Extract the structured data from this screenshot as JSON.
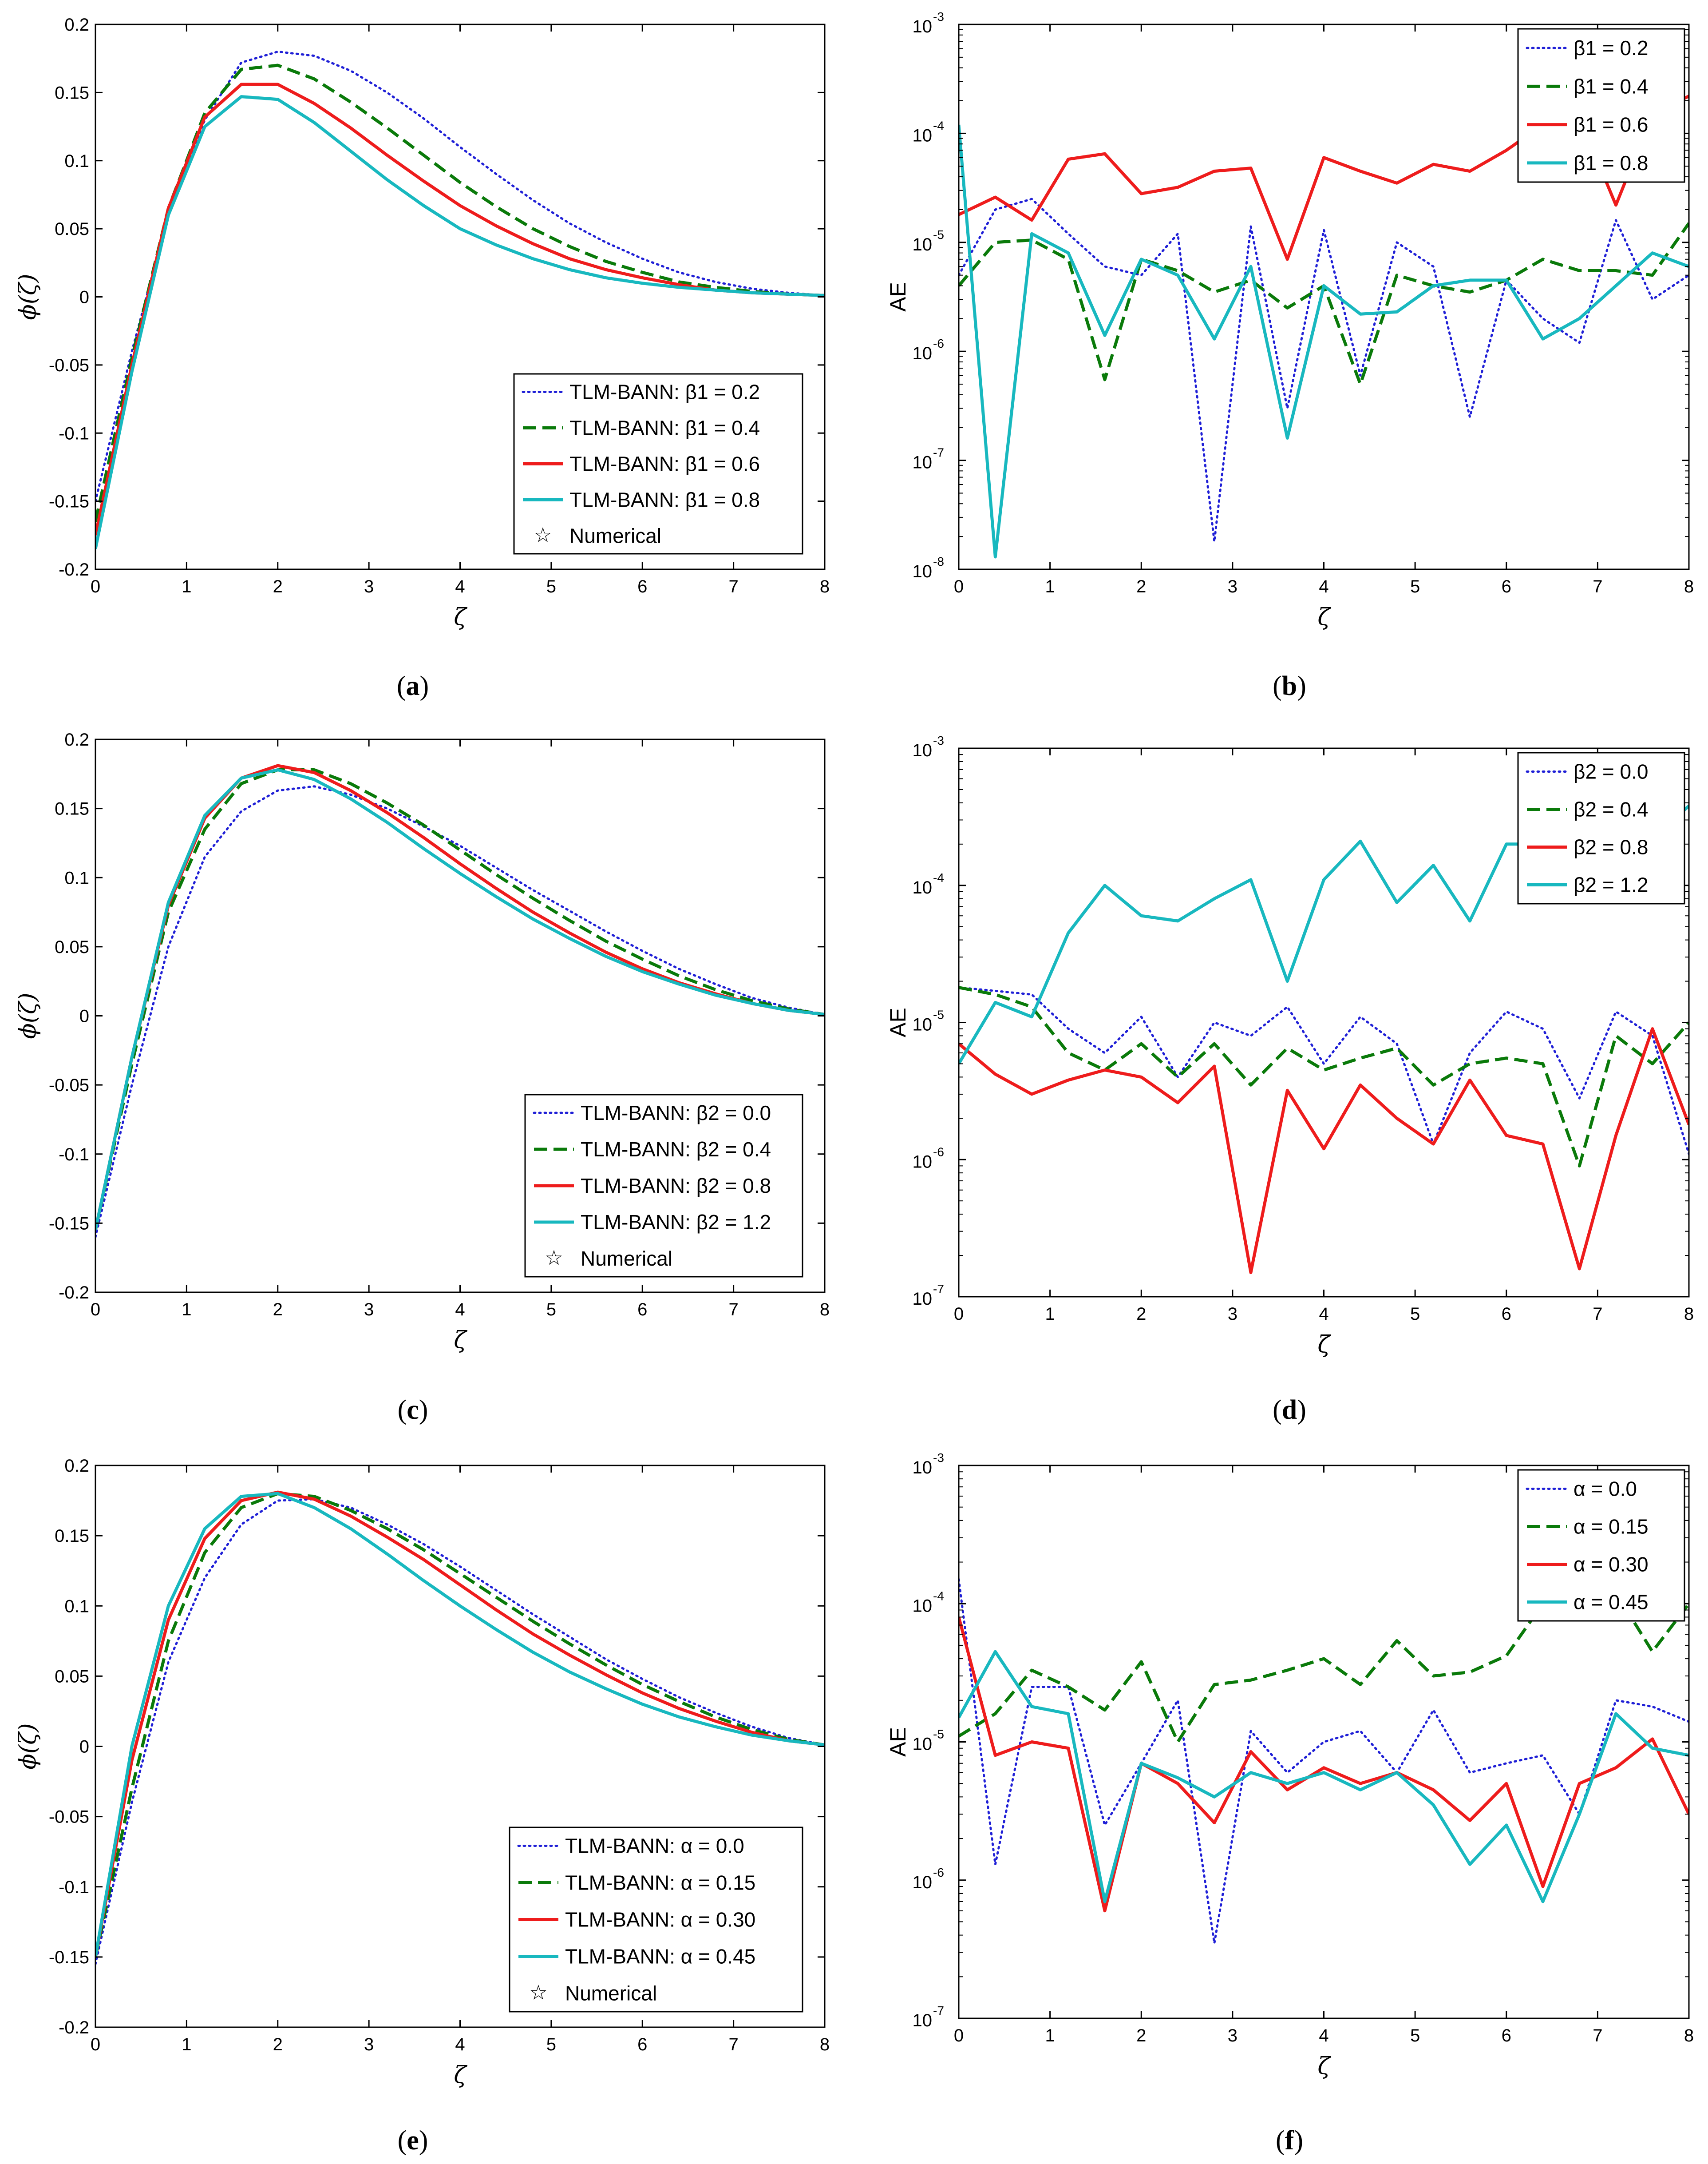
{
  "colors": {
    "blue": "#1f1fd6",
    "green": "#0a7a0a",
    "red": "#ee1c1c",
    "cyan": "#18b8bf",
    "axis": "#000000"
  },
  "chart_data": [
    {
      "panel": "a",
      "caption": "a",
      "type": "line",
      "xlabel": "ζ",
      "ylabel": "ϕ(ζ)",
      "xlim": [
        0,
        8
      ],
      "ylim": [
        -0.2,
        0.2
      ],
      "xticks": [
        "0",
        "1",
        "2",
        "3",
        "4",
        "5",
        "6",
        "7",
        "8"
      ],
      "yticks": [
        "-0.2",
        "-0.15",
        "-0.1",
        "-0.05",
        "0",
        "0.05",
        "0.1",
        "0.15",
        "0.2"
      ],
      "ytick_values": [
        -0.2,
        -0.15,
        -0.1,
        -0.05,
        0,
        0.05,
        0.1,
        0.15,
        0.2
      ],
      "legend_position": "bottom-right",
      "legend_numerical": "Numerical",
      "x": [
        0,
        0.4,
        0.8,
        1.2,
        1.6,
        2.0,
        2.4,
        2.8,
        3.2,
        3.6,
        4.0,
        4.4,
        4.8,
        5.2,
        5.6,
        6.0,
        6.4,
        6.8,
        7.2,
        7.6,
        8.0
      ],
      "series": [
        {
          "name": "TLM-BANN: β1 = 0.2",
          "style": "dotted",
          "color": "blue",
          "values": [
            -0.15,
            -0.04,
            0.06,
            0.13,
            0.172,
            0.18,
            0.177,
            0.166,
            0.15,
            0.131,
            0.11,
            0.09,
            0.071,
            0.054,
            0.04,
            0.028,
            0.018,
            0.011,
            0.006,
            0.003,
            0.001
          ]
        },
        {
          "name": "TLM-BANN: β1 = 0.4",
          "style": "dashed",
          "color": "green",
          "values": [
            -0.165,
            -0.045,
            0.065,
            0.135,
            0.167,
            0.17,
            0.16,
            0.143,
            0.124,
            0.104,
            0.084,
            0.066,
            0.05,
            0.037,
            0.026,
            0.018,
            0.011,
            0.007,
            0.004,
            0.002,
            0.001
          ]
        },
        {
          "name": "TLM-BANN: β1 = 0.6",
          "style": "solid",
          "color": "red",
          "values": [
            -0.175,
            -0.05,
            0.065,
            0.132,
            0.156,
            0.156,
            0.142,
            0.124,
            0.104,
            0.085,
            0.067,
            0.052,
            0.039,
            0.028,
            0.02,
            0.014,
            0.009,
            0.005,
            0.003,
            0.002,
            0.001
          ]
        },
        {
          "name": "TLM-BANN: β1 = 0.8",
          "style": "solid",
          "color": "cyan",
          "values": [
            -0.185,
            -0.055,
            0.06,
            0.125,
            0.147,
            0.145,
            0.128,
            0.107,
            0.086,
            0.067,
            0.05,
            0.038,
            0.028,
            0.02,
            0.014,
            0.01,
            0.007,
            0.005,
            0.003,
            0.002,
            0.001
          ]
        }
      ]
    },
    {
      "panel": "b",
      "caption": "b",
      "type": "line",
      "yscale": "log",
      "xlabel": "ζ",
      "ylabel": "AE",
      "xlim": [
        0,
        8
      ],
      "ylim_exp": [
        -8,
        -3
      ],
      "xticks": [
        "0",
        "1",
        "2",
        "3",
        "4",
        "5",
        "6",
        "7",
        "8"
      ],
      "ytick_exps": [
        "-8",
        "-7",
        "-6",
        "-5",
        "-4",
        "-3"
      ],
      "ytick_base": "10",
      "legend_position": "top-right",
      "x": [
        0,
        0.4,
        0.8,
        1.2,
        1.6,
        2.0,
        2.4,
        2.8,
        3.2,
        3.6,
        4.0,
        4.4,
        4.8,
        5.2,
        5.6,
        6.0,
        6.4,
        6.8,
        7.2,
        7.6,
        8.0
      ],
      "series": [
        {
          "name": "β1 = 0.2",
          "style": "dotted",
          "color": "blue",
          "values": [
            5e-06,
            2e-05,
            2.5e-05,
            1.2e-05,
            6e-06,
            5e-06,
            1.2e-05,
            1.8e-08,
            1.4e-05,
            3e-07,
            1.3e-05,
            6e-07,
            1e-05,
            6e-06,
            2.5e-07,
            4.5e-06,
            2e-06,
            1.2e-06,
            1.6e-05,
            3e-06,
            5e-06
          ]
        },
        {
          "name": "β1 = 0.4",
          "style": "dashed",
          "color": "green",
          "values": [
            4e-06,
            1e-05,
            1.05e-05,
            7e-06,
            5.5e-07,
            7e-06,
            5.5e-06,
            3.5e-06,
            4.5e-06,
            2.5e-06,
            4e-06,
            5e-07,
            5e-06,
            4e-06,
            3.5e-06,
            4.5e-06,
            7e-06,
            5.5e-06,
            5.5e-06,
            5e-06,
            1.5e-05
          ]
        },
        {
          "name": "β1 = 0.6",
          "style": "solid",
          "color": "red",
          "values": [
            1.8e-05,
            2.6e-05,
            1.6e-05,
            5.8e-05,
            6.5e-05,
            2.8e-05,
            3.2e-05,
            4.5e-05,
            4.8e-05,
            7e-06,
            6e-05,
            4.5e-05,
            3.5e-05,
            5.2e-05,
            4.5e-05,
            7e-05,
            0.00012,
            0.00014,
            2.2e-05,
            0.00015,
            0.00022
          ]
        },
        {
          "name": "β1 = 0.8",
          "style": "solid",
          "color": "cyan",
          "values": [
            0.00012,
            1.3e-08,
            1.2e-05,
            8e-06,
            1.4e-06,
            7e-06,
            5e-06,
            1.3e-06,
            6e-06,
            1.6e-07,
            4e-06,
            2.2e-06,
            2.3e-06,
            4e-06,
            4.5e-06,
            4.5e-06,
            1.3e-06,
            2e-06,
            4e-06,
            8e-06,
            6e-06
          ]
        }
      ]
    },
    {
      "panel": "c",
      "caption": "c",
      "type": "line",
      "xlabel": "ζ",
      "ylabel": "ϕ(ζ)",
      "xlim": [
        0,
        8
      ],
      "ylim": [
        -0.2,
        0.2
      ],
      "xticks": [
        "0",
        "1",
        "2",
        "3",
        "4",
        "5",
        "6",
        "7",
        "8"
      ],
      "yticks": [
        "-0.2",
        "-0.15",
        "-0.1",
        "-0.05",
        "0",
        "0.05",
        "0.1",
        "0.15",
        "0.2"
      ],
      "ytick_values": [
        -0.2,
        -0.15,
        -0.1,
        -0.05,
        0,
        0.05,
        0.1,
        0.15,
        0.2
      ],
      "legend_position": "bottom-right",
      "legend_numerical": "Numerical",
      "x": [
        0,
        0.4,
        0.8,
        1.2,
        1.6,
        2.0,
        2.4,
        2.8,
        3.2,
        3.6,
        4.0,
        4.4,
        4.8,
        5.2,
        5.6,
        6.0,
        6.4,
        6.8,
        7.2,
        7.6,
        8.0
      ],
      "series": [
        {
          "name": "TLM-BANN: β2 = 0.0",
          "style": "dotted",
          "color": "blue",
          "values": [
            -0.16,
            -0.05,
            0.05,
            0.115,
            0.148,
            0.163,
            0.166,
            0.16,
            0.15,
            0.137,
            0.123,
            0.107,
            0.091,
            0.076,
            0.061,
            0.047,
            0.034,
            0.023,
            0.013,
            0.006,
            0.001
          ]
        },
        {
          "name": "TLM-BANN: β2 = 0.4",
          "style": "dashed",
          "color": "green",
          "values": [
            -0.155,
            -0.035,
            0.075,
            0.135,
            0.168,
            0.178,
            0.178,
            0.168,
            0.154,
            0.138,
            0.12,
            0.102,
            0.085,
            0.069,
            0.054,
            0.041,
            0.029,
            0.019,
            0.011,
            0.005,
            0.001
          ]
        },
        {
          "name": "TLM-BANN: β2 = 0.8",
          "style": "solid",
          "color": "red",
          "values": [
            -0.155,
            -0.03,
            0.08,
            0.143,
            0.172,
            0.181,
            0.176,
            0.163,
            0.147,
            0.129,
            0.11,
            0.092,
            0.075,
            0.06,
            0.046,
            0.034,
            0.024,
            0.016,
            0.009,
            0.004,
            0.001
          ]
        },
        {
          "name": "TLM-BANN: β2 = 1.2",
          "style": "solid",
          "color": "cyan",
          "values": [
            -0.155,
            -0.03,
            0.082,
            0.145,
            0.172,
            0.178,
            0.171,
            0.157,
            0.14,
            0.121,
            0.103,
            0.086,
            0.07,
            0.056,
            0.043,
            0.032,
            0.023,
            0.015,
            0.009,
            0.004,
            0.001
          ]
        }
      ]
    },
    {
      "panel": "d",
      "caption": "d",
      "type": "line",
      "yscale": "log",
      "xlabel": "ζ",
      "ylabel": "AE",
      "xlim": [
        0,
        8
      ],
      "ylim_exp": [
        -7,
        -3
      ],
      "xticks": [
        "0",
        "1",
        "2",
        "3",
        "4",
        "5",
        "6",
        "7",
        "8"
      ],
      "ytick_exps": [
        "-7",
        "-6",
        "-5",
        "-4",
        "-3"
      ],
      "ytick_base": "10",
      "legend_position": "top-right",
      "x": [
        0,
        0.4,
        0.8,
        1.2,
        1.6,
        2.0,
        2.4,
        2.8,
        3.2,
        3.6,
        4.0,
        4.4,
        4.8,
        5.2,
        5.6,
        6.0,
        6.4,
        6.8,
        7.2,
        7.6,
        8.0
      ],
      "series": [
        {
          "name": "β2 = 0.0",
          "style": "dotted",
          "color": "blue",
          "values": [
            1.8e-05,
            1.7e-05,
            1.6e-05,
            9e-06,
            6e-06,
            1.1e-05,
            4e-06,
            1e-05,
            8e-06,
            1.3e-05,
            5e-06,
            1.1e-05,
            7e-06,
            1.3e-06,
            6e-06,
            1.2e-05,
            9e-06,
            2.8e-06,
            1.2e-05,
            8e-06,
            1.1e-06
          ]
        },
        {
          "name": "β2 = 0.4",
          "style": "dashed",
          "color": "green",
          "values": [
            1.8e-05,
            1.6e-05,
            1.3e-05,
            6e-06,
            4.5e-06,
            7e-06,
            4e-06,
            7e-06,
            3.5e-06,
            6.5e-06,
            4.5e-06,
            5.5e-06,
            6.5e-06,
            3.5e-06,
            5e-06,
            5.5e-06,
            5e-06,
            9e-07,
            8e-06,
            5e-06,
            1e-05
          ]
        },
        {
          "name": "β2 = 0.8",
          "style": "solid",
          "color": "red",
          "values": [
            7e-06,
            4.2e-06,
            3e-06,
            3.8e-06,
            4.5e-06,
            4e-06,
            2.6e-06,
            4.8e-06,
            1.5e-07,
            3.2e-06,
            1.2e-06,
            3.5e-06,
            2e-06,
            1.3e-06,
            3.8e-06,
            1.5e-06,
            1.3e-06,
            1.6e-07,
            1.5e-06,
            9e-06,
            1.8e-06
          ]
        },
        {
          "name": "β2 = 1.2",
          "style": "solid",
          "color": "cyan",
          "values": [
            5e-06,
            1.4e-05,
            1.1e-05,
            4.5e-05,
            0.0001,
            6e-05,
            5.5e-05,
            8e-05,
            0.00011,
            2e-05,
            0.00011,
            0.00021,
            7.5e-05,
            0.00014,
            5.5e-05,
            0.0002,
            0.0002,
            0.0003,
            0.00025,
            0.00022,
            0.00038
          ]
        }
      ]
    },
    {
      "panel": "e",
      "caption": "e",
      "type": "line",
      "xlabel": "ζ",
      "ylabel": "ϕ(ζ)",
      "xlim": [
        0,
        8
      ],
      "ylim": [
        -0.2,
        0.2
      ],
      "xticks": [
        "0",
        "1",
        "2",
        "3",
        "4",
        "5",
        "6",
        "7",
        "8"
      ],
      "yticks": [
        "-0.2",
        "-0.15",
        "-0.1",
        "-0.05",
        "0",
        "0.05",
        "0.1",
        "0.15",
        "0.2"
      ],
      "ytick_values": [
        -0.2,
        -0.15,
        -0.1,
        -0.05,
        0,
        0.05,
        0.1,
        0.15,
        0.2
      ],
      "legend_position": "bottom-right",
      "legend_numerical": "Numerical",
      "x": [
        0,
        0.4,
        0.8,
        1.2,
        1.6,
        2.0,
        2.4,
        2.8,
        3.2,
        3.6,
        4.0,
        4.4,
        4.8,
        5.2,
        5.6,
        6.0,
        6.4,
        6.8,
        7.2,
        7.6,
        8.0
      ],
      "series": [
        {
          "name": "TLM-BANN: α = 0.0",
          "style": "dotted",
          "color": "blue",
          "values": [
            -0.155,
            -0.04,
            0.06,
            0.12,
            0.158,
            0.175,
            0.176,
            0.17,
            0.158,
            0.144,
            0.128,
            0.111,
            0.094,
            0.078,
            0.062,
            0.048,
            0.035,
            0.024,
            0.014,
            0.006,
            0.001
          ]
        },
        {
          "name": "TLM-BANN: α = 0.15",
          "style": "dashed",
          "color": "green",
          "values": [
            -0.15,
            -0.03,
            0.075,
            0.138,
            0.17,
            0.18,
            0.178,
            0.168,
            0.155,
            0.14,
            0.123,
            0.106,
            0.089,
            0.073,
            0.058,
            0.044,
            0.032,
            0.021,
            0.012,
            0.005,
            0.001
          ]
        },
        {
          "name": "TLM-BANN: α = 0.30",
          "style": "solid",
          "color": "red",
          "values": [
            -0.15,
            -0.01,
            0.09,
            0.148,
            0.175,
            0.181,
            0.176,
            0.164,
            0.149,
            0.133,
            0.115,
            0.097,
            0.08,
            0.065,
            0.051,
            0.038,
            0.027,
            0.018,
            0.01,
            0.004,
            0.001
          ]
        },
        {
          "name": "TLM-BANN: α = 0.45",
          "style": "solid",
          "color": "cyan",
          "values": [
            -0.15,
            0.0,
            0.1,
            0.155,
            0.178,
            0.18,
            0.17,
            0.155,
            0.137,
            0.118,
            0.1,
            0.083,
            0.067,
            0.053,
            0.041,
            0.03,
            0.021,
            0.014,
            0.008,
            0.004,
            0.001
          ]
        }
      ]
    },
    {
      "panel": "f",
      "caption": "f",
      "type": "line",
      "yscale": "log",
      "xlabel": "ζ",
      "ylabel": "AE",
      "xlim": [
        0,
        8
      ],
      "ylim_exp": [
        -7,
        -3
      ],
      "xticks": [
        "0",
        "1",
        "2",
        "3",
        "4",
        "5",
        "6",
        "7",
        "8"
      ],
      "ytick_exps": [
        "-7",
        "-6",
        "-5",
        "-4",
        "-3"
      ],
      "ytick_base": "10",
      "legend_position": "top-right",
      "x": [
        0,
        0.4,
        0.8,
        1.2,
        1.6,
        2.0,
        2.4,
        2.8,
        3.2,
        3.6,
        4.0,
        4.4,
        4.8,
        5.2,
        5.6,
        6.0,
        6.4,
        6.8,
        7.2,
        7.6,
        8.0
      ],
      "series": [
        {
          "name": "α = 0.0",
          "style": "dotted",
          "color": "blue",
          "values": [
            0.00015,
            1.3e-06,
            2.5e-05,
            2.5e-05,
            2.5e-06,
            7e-06,
            2e-05,
            3.5e-07,
            1.2e-05,
            6e-06,
            1e-05,
            1.2e-05,
            6e-06,
            1.7e-05,
            6e-06,
            7e-06,
            8e-06,
            3e-06,
            2e-05,
            1.8e-05,
            1.4e-05
          ]
        },
        {
          "name": "α = 0.15",
          "style": "dashed",
          "color": "green",
          "values": [
            1.1e-05,
            1.6e-05,
            3.3e-05,
            2.5e-05,
            1.7e-05,
            3.8e-05,
            1e-05,
            2.6e-05,
            2.8e-05,
            3.3e-05,
            4e-05,
            2.6e-05,
            5.4e-05,
            3e-05,
            3.2e-05,
            4.2e-05,
            0.0001,
            9e-05,
            0.00012,
            4.5e-05,
            0.0001
          ]
        },
        {
          "name": "α = 0.30",
          "style": "solid",
          "color": "red",
          "values": [
            8e-05,
            8e-06,
            1e-05,
            9e-06,
            6e-07,
            7e-06,
            5e-06,
            2.6e-06,
            8.5e-06,
            4.5e-06,
            6.5e-06,
            5e-06,
            6e-06,
            4.5e-06,
            2.7e-06,
            5e-06,
            9e-07,
            5e-06,
            6.5e-06,
            1.05e-05,
            3e-06
          ]
        },
        {
          "name": "α = 0.45",
          "style": "solid",
          "color": "cyan",
          "values": [
            1.5e-05,
            4.5e-05,
            1.8e-05,
            1.6e-05,
            7e-07,
            7e-06,
            5.5e-06,
            4e-06,
            6e-06,
            5e-06,
            6e-06,
            4.5e-06,
            6e-06,
            3.5e-06,
            1.3e-06,
            2.5e-06,
            7e-07,
            3e-06,
            1.6e-05,
            9e-06,
            8e-06
          ]
        }
      ]
    }
  ]
}
